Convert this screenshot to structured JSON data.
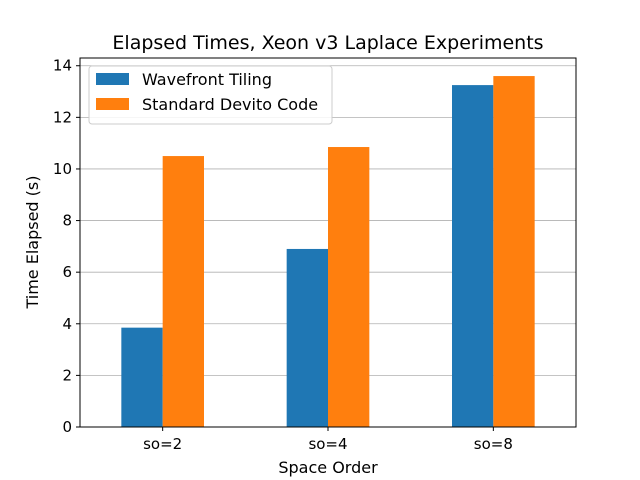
{
  "chart_data": {
    "type": "bar",
    "title": "Elapsed Times, Xeon v3 Laplace Experiments",
    "xlabel": "Space Order",
    "ylabel": "Time Elapsed (s)",
    "categories": [
      "so=2",
      "so=4",
      "so=8"
    ],
    "series": [
      {
        "name": "Wavefront Tiling",
        "values": [
          3.85,
          6.9,
          13.25
        ],
        "color": "#1f77b4"
      },
      {
        "name": "Standard Devito Code",
        "values": [
          10.5,
          10.85,
          13.6
        ],
        "color": "#ff7f0e"
      }
    ],
    "ylim": [
      0,
      14.3
    ],
    "yticks": [
      0,
      2,
      4,
      6,
      8,
      10,
      12,
      14
    ],
    "grid": "y-major",
    "legend_position": "upper-left"
  }
}
